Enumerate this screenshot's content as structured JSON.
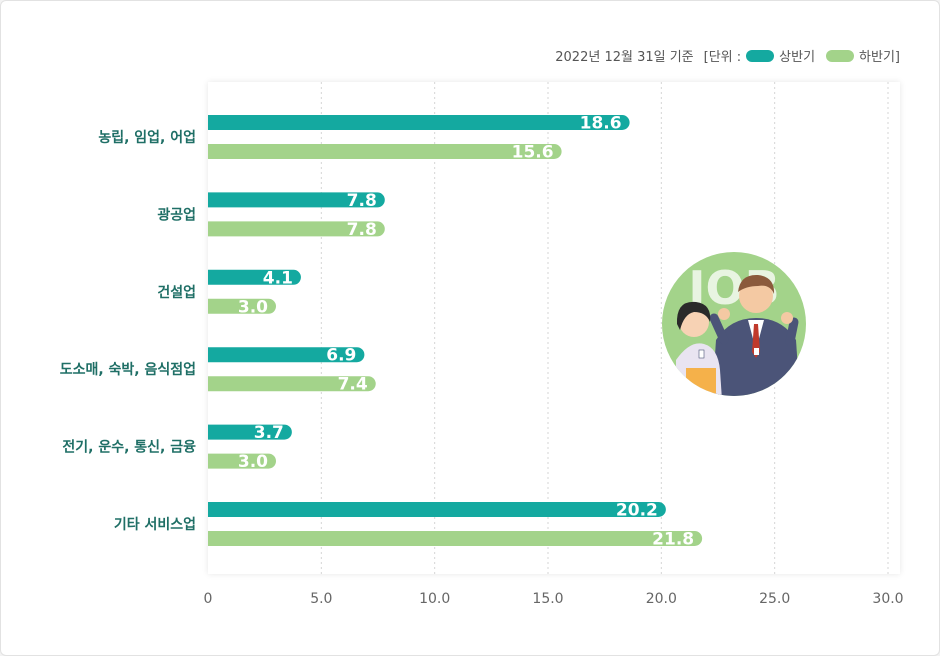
{
  "legend": {
    "note": "2022년 12월 31일 기준",
    "unit_open": "[단위 :",
    "series1": "상반기",
    "series2": "하반기]"
  },
  "illustration": {
    "badge_text": "JOB",
    "icon": "job-workers-illustration"
  },
  "colors": {
    "series1": "#14a9a0",
    "series2": "#a3d38a",
    "category_text": "#1f6f66",
    "grid": "#d6d6d6"
  },
  "chart_data": {
    "type": "bar",
    "orientation": "horizontal",
    "categories": [
      "농립, 임업, 어업",
      "광공업",
      "건설업",
      "도소매, 숙박, 음식점업",
      "전기, 운수, 통신, 금융",
      "기타 서비스업"
    ],
    "series": [
      {
        "name": "상반기",
        "values": [
          18.6,
          7.8,
          4.1,
          6.9,
          3.7,
          20.2
        ]
      },
      {
        "name": "하반기",
        "values": [
          15.6,
          7.8,
          3.0,
          7.4,
          3.0,
          21.8
        ]
      }
    ],
    "value_labels": [
      [
        "18.6",
        "7.8",
        "4.1",
        "6.9",
        "3.7",
        "20.2"
      ],
      [
        "15.6",
        "7.8",
        "3.0",
        "7.4",
        "3.0",
        "21.8"
      ]
    ],
    "xlim": [
      0,
      30
    ],
    "xticks": [
      "0",
      "5.0",
      "10.0",
      "15.0",
      "20.0",
      "25.0",
      "30.0"
    ],
    "xtick_values": [
      0,
      5,
      10,
      15,
      20,
      25,
      30
    ],
    "grid": true,
    "legend_position": "top-right"
  }
}
